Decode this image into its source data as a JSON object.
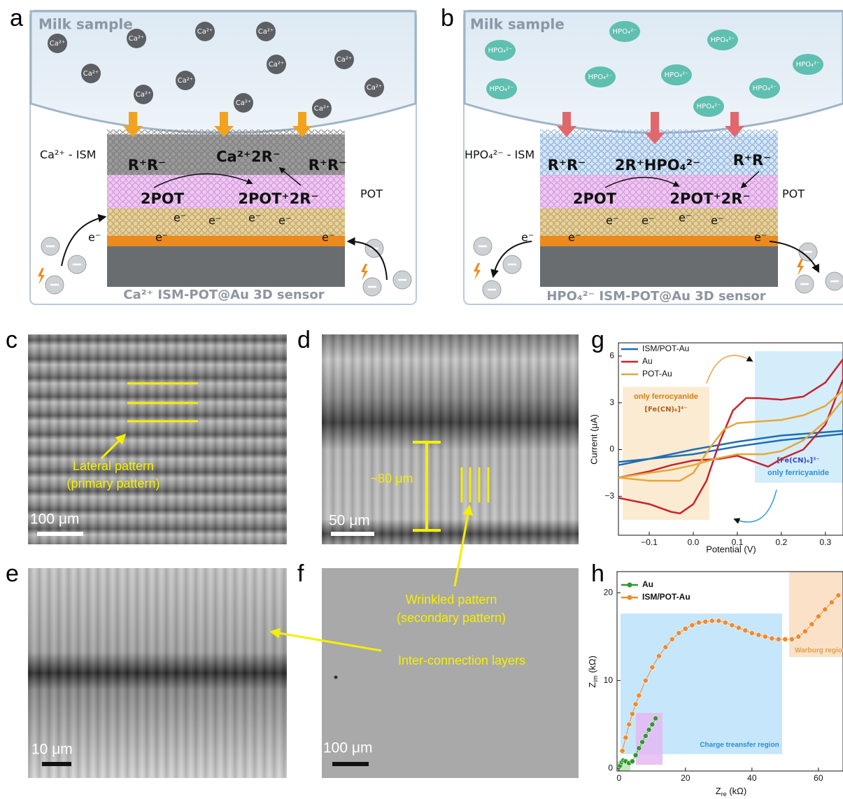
{
  "panels": {
    "a": {
      "label": "a",
      "sample": "Milk sample",
      "ion": "Ca²⁺",
      "membrane": "Ca²⁺ - ISM",
      "reactions": [
        "R⁺R⁻",
        "Ca²⁺2R⁻",
        "R⁺R⁻",
        "2POT",
        "2POT⁺2R⁻"
      ],
      "layer": "POT",
      "electron": "e⁻",
      "caption": "Ca²⁺ ISM-POT@Au 3D sensor"
    },
    "b": {
      "label": "b",
      "sample": "Milk sample",
      "ion": "HPO₄²⁻",
      "membrane": "HPO₄²⁻ - ISM",
      "reactions": [
        "R⁺R⁻",
        "2R⁺HPO₄²⁻",
        "R⁺R⁻",
        "2POT",
        "2POT⁺2R⁻"
      ],
      "layer": "POT",
      "electron": "e⁻",
      "caption": "HPO₄²⁻ ISM-POT@Au 3D sensor"
    },
    "c": {
      "label": "c",
      "annotation": [
        "Lateral pattern",
        "(primary pattern)"
      ],
      "scale": "100 μm"
    },
    "d": {
      "label": "d",
      "measure": "~80 μm",
      "annotation": [
        "Wrinkled pattern",
        "(secondary pattern)"
      ],
      "scale": "50 μm"
    },
    "e": {
      "label": "e",
      "annotation": "Inter-connection layers",
      "scale": "10 μm"
    },
    "f": {
      "label": "f",
      "scale": "100 μm"
    },
    "g": {
      "label": "g",
      "type": "line",
      "xlabel": "Potential (V)",
      "ylabel": "Current (μA)",
      "xlim": [
        -0.17,
        0.34
      ],
      "ylim": [
        -5.5,
        6.85
      ],
      "xticks": [
        {
          "value": -0.1,
          "label": "−0.1"
        },
        {
          "value": 0,
          "label": "0.0"
        },
        0.1,
        0.2,
        0.3
      ],
      "yticks": [
        6,
        3,
        0,
        {
          "value": -3,
          "label": "−3"
        }
      ],
      "annotations": [
        "only ferrocyanide",
        "[Fe(CN)₆]⁴⁻",
        "[Fe(CN)₆]³⁻",
        "only ferricyanide"
      ],
      "series": [
        {
          "name": "ISM/POT-Au",
          "color": "#1f6fb2",
          "x": [
            -0.17,
            -0.1,
            0,
            0.1,
            0.2,
            0.34,
            0.34,
            0.2,
            0.1,
            0,
            -0.1,
            -0.17
          ],
          "values": [
            -1.0,
            -0.6,
            0.0,
            0.5,
            0.9,
            1.2,
            1.0,
            0.6,
            0.2,
            -0.3,
            -0.6,
            -0.8
          ]
        },
        {
          "name": "Au",
          "color": "#c8232c",
          "x": [
            -0.17,
            -0.1,
            -0.05,
            -0.03,
            0,
            0.03,
            0.06,
            0.09,
            0.12,
            0.15,
            0.2,
            0.25,
            0.3,
            0.34,
            0.34,
            0.3,
            0.25,
            0.2,
            0.17,
            0.14,
            0.1,
            0.06,
            0,
            -0.05,
            -0.1,
            -0.17
          ],
          "values": [
            -3.1,
            -3.5,
            -4.0,
            -4.1,
            -3.5,
            -2.0,
            0.5,
            2.5,
            3.3,
            3.3,
            3.2,
            3.4,
            4.3,
            5.8,
            4.5,
            1.6,
            0.0,
            -0.6,
            -1.1,
            -0.8,
            -0.4,
            -0.6,
            -0.7,
            -1.0,
            -1.4,
            -1.8
          ]
        },
        {
          "name": "POT-Au",
          "color": "#e6a73a",
          "x": [
            -0.17,
            -0.1,
            -0.03,
            0,
            0.04,
            0.07,
            0.1,
            0.15,
            0.2,
            0.25,
            0.3,
            0.34,
            0.34,
            0.3,
            0.25,
            0.2,
            0.16,
            0.1,
            0.05,
            0,
            -0.05,
            -0.1,
            -0.17
          ],
          "values": [
            -1.8,
            -2.0,
            -2.0,
            -1.5,
            0.2,
            1.3,
            1.7,
            1.8,
            1.9,
            2.2,
            2.8,
            3.8,
            3.2,
            1.8,
            0.6,
            -0.1,
            -0.3,
            -0.3,
            -0.6,
            -1.0,
            -1.3,
            -1.5,
            -1.8
          ]
        }
      ]
    },
    "h": {
      "label": "h",
      "type": "scatter",
      "xlabel": [
        "Z",
        "re",
        " (kΩ)"
      ],
      "ylabel": [
        "Z",
        "im",
        " (kΩ)"
      ],
      "xlim": [
        -0.6,
        67.4
      ],
      "ylim": [
        -0.3,
        22.4
      ],
      "xticks": [
        0,
        20,
        40,
        60
      ],
      "yticks": [
        0,
        10,
        20
      ],
      "annotations": [
        "Charge treansfer region",
        "Warburg region"
      ],
      "series": [
        {
          "name": "Au",
          "color": "#2e9a2e",
          "x": [
            0.3,
            0.8,
            1.3,
            2,
            3,
            4,
            5,
            6,
            7,
            8,
            9,
            10,
            11
          ],
          "values": [
            0.3,
            0.7,
            0.9,
            0.8,
            0.6,
            0.8,
            1.5,
            2.3,
            3.0,
            3.7,
            4.4,
            5.0,
            5.7
          ]
        },
        {
          "name": "ISM/POT-Au",
          "color": "#ef8a2e",
          "x": [
            1,
            2,
            3,
            4,
            5,
            6,
            8,
            10,
            12,
            14,
            16,
            18,
            20,
            22,
            24,
            26,
            28,
            30,
            32,
            34,
            36,
            38,
            40,
            42,
            44,
            46,
            48,
            50,
            52,
            54,
            56,
            58,
            60,
            62,
            64,
            66
          ],
          "values": [
            2,
            3.5,
            5,
            6.2,
            7.3,
            8.3,
            10,
            11.5,
            12.8,
            13.8,
            14.7,
            15.4,
            15.9,
            16.3,
            16.6,
            16.7,
            16.8,
            16.8,
            16.6,
            16.3,
            16.0,
            15.7,
            15.4,
            15.2,
            15.0,
            14.8,
            14.7,
            14.7,
            14.7,
            15.0,
            15.6,
            16.4,
            17.3,
            18.1,
            18.9,
            19.7
          ]
        }
      ]
    }
  }
}
